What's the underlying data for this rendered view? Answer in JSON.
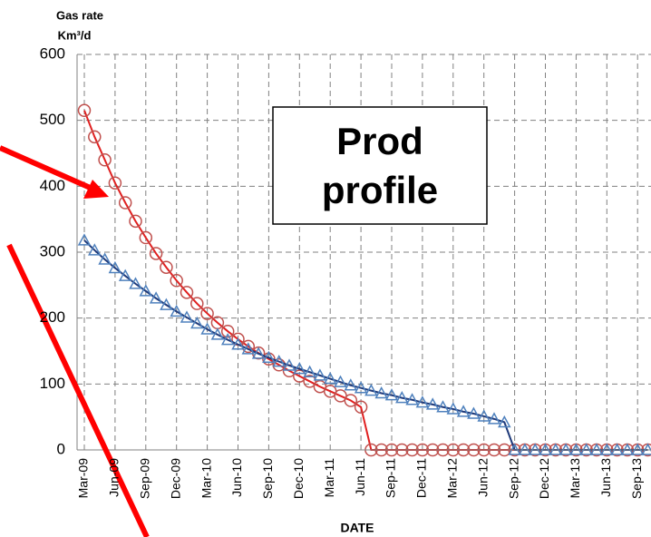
{
  "chart_data": {
    "type": "line",
    "y_label": [
      "Gas rate",
      "Km³/d"
    ],
    "x_label": "DATE",
    "annotation": "Prod profile",
    "categories": [
      "Mar-09",
      null,
      null,
      "Jun-09",
      null,
      null,
      "Sep-09",
      null,
      null,
      "Dec-09",
      null,
      null,
      "Mar-10",
      null,
      null,
      "Jun-10",
      null,
      null,
      "Sep-10",
      null,
      null,
      "Dec-10",
      null,
      null,
      "Mar-11",
      null,
      null,
      "Jun-11",
      null,
      null,
      "Sep-11",
      null,
      null,
      "Dec-11",
      null,
      null,
      "Mar-12",
      null,
      null,
      "Jun-12",
      null,
      null,
      "Sep-12",
      null,
      null,
      "Dec-12",
      null,
      null,
      "Mar-13",
      null,
      null,
      "Jun-13",
      null,
      null,
      "Sep-13",
      null
    ],
    "series": [
      {
        "color": "#e02020",
        "marker_color": "#c0504d",
        "marker": "circle",
        "values": [
          515,
          475,
          440,
          405,
          375,
          347,
          322,
          298,
          277,
          257,
          239,
          222,
          207,
          193,
          180,
          168,
          157,
          147,
          138,
          129,
          120,
          112,
          104,
          96,
          89,
          82,
          75,
          65,
          0,
          0,
          0,
          0,
          0,
          0,
          0,
          0,
          0,
          0,
          0,
          0,
          0,
          0,
          0,
          0,
          0,
          0,
          0,
          0,
          0,
          0,
          0,
          0,
          0,
          0,
          0,
          0
        ]
      },
      {
        "color": "#1f3a7a",
        "marker_color": "#4f81bd",
        "marker": "triangle",
        "values": [
          318,
          303,
          289,
          276,
          264,
          252,
          241,
          230,
          220,
          210,
          201,
          192,
          183,
          175,
          167,
          160,
          153,
          146,
          140,
          134,
          128,
          123,
          118,
          113,
          108,
          103,
          98,
          94,
          90,
          86,
          83,
          79,
          76,
          72,
          69,
          65,
          62,
          58,
          55,
          51,
          47,
          42,
          0,
          0,
          0,
          0,
          0,
          0,
          0,
          0,
          0,
          0,
          0,
          0,
          0,
          0
        ]
      }
    ],
    "ylim": [
      0,
      600
    ],
    "yticks": [
      0,
      100,
      200,
      300,
      400,
      500,
      600
    ],
    "grid": true
  }
}
